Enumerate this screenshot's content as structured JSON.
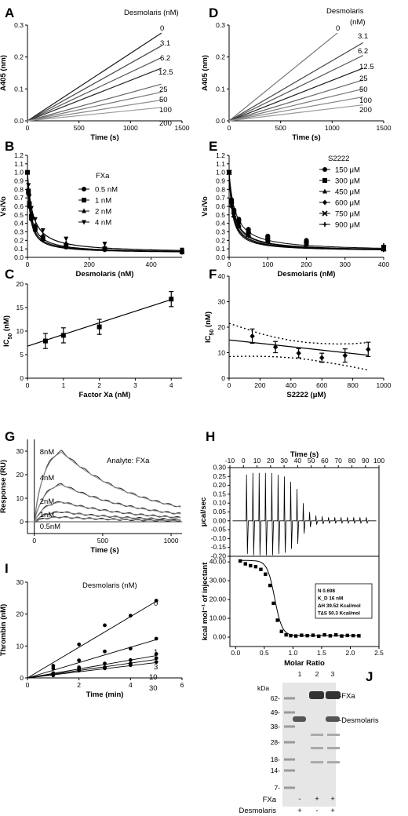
{
  "chart_data": [
    {
      "panel": "A",
      "type": "line",
      "xlabel": "Time (s)",
      "ylabel": "A405 (nm)",
      "xlim": [
        0,
        1500
      ],
      "ylim": [
        0,
        0.3
      ],
      "xticks": [
        "0",
        "500",
        "1000",
        "1500"
      ],
      "yticks": [
        "0.0",
        "0.1",
        "0.2",
        "0.3"
      ],
      "legend_title": "Desmolaris (nM)",
      "series": [
        {
          "label": "0",
          "x": [
            0,
            1300
          ],
          "y": [
            0,
            0.275
          ],
          "color": "#1a1a1a"
        },
        {
          "label": "3.1",
          "x": [
            0,
            1300
          ],
          "y": [
            0,
            0.235
          ],
          "color": "#444444"
        },
        {
          "label": "6.2",
          "x": [
            0,
            1300
          ],
          "y": [
            0,
            0.198
          ],
          "color": "#555555"
        },
        {
          "label": "12.5",
          "x": [
            0,
            1300
          ],
          "y": [
            0,
            0.165
          ],
          "color": "#222222"
        },
        {
          "label": "25",
          "x": [
            0,
            1300
          ],
          "y": [
            0,
            0.115
          ],
          "color": "#666666"
        },
        {
          "label": "50",
          "x": [
            0,
            1300
          ],
          "y": [
            0,
            0.09
          ],
          "color": "#777777"
        },
        {
          "label": "100",
          "x": [
            0,
            1300
          ],
          "y": [
            0,
            0.065
          ],
          "color": "#888888"
        },
        {
          "label": "200",
          "x": [
            0,
            1300
          ],
          "y": [
            0,
            0.042
          ],
          "color": "#999999"
        }
      ]
    },
    {
      "panel": "D",
      "type": "line",
      "xlabel": "Time (s)",
      "ylabel": "A405 (nm)",
      "xlim": [
        0,
        1500
      ],
      "ylim": [
        0,
        0.3
      ],
      "xticks": [
        "0",
        "500",
        "1000",
        "1500"
      ],
      "yticks": [
        "0.0",
        "0.1",
        "0.2",
        "0.3"
      ],
      "legend_title_lines": [
        "Desmolaris",
        "(nM)"
      ],
      "series": [
        {
          "label": "0",
          "x": [
            0,
            1050
          ],
          "y": [
            0,
            0.275
          ],
          "color": "#777777"
        },
        {
          "label": "3.1",
          "x": [
            0,
            1300
          ],
          "y": [
            0,
            0.245
          ],
          "color": "#444444"
        },
        {
          "label": "6.2",
          "x": [
            0,
            1300
          ],
          "y": [
            0,
            0.205
          ],
          "color": "#555555"
        },
        {
          "label": "12.5",
          "x": [
            0,
            1300
          ],
          "y": [
            0,
            0.165
          ],
          "color": "#1a1a1a"
        },
        {
          "label": "25",
          "x": [
            0,
            1300
          ],
          "y": [
            0,
            0.128
          ],
          "color": "#666666"
        },
        {
          "label": "50",
          "x": [
            0,
            1300
          ],
          "y": [
            0,
            0.1
          ],
          "color": "#777777"
        },
        {
          "label": "100",
          "x": [
            0,
            1300
          ],
          "y": [
            0,
            0.075
          ],
          "color": "#888888"
        },
        {
          "label": "200",
          "x": [
            0,
            1300
          ],
          "y": [
            0,
            0.05
          ],
          "color": "#999999"
        }
      ]
    },
    {
      "panel": "B",
      "type": "scatter",
      "xlabel": "Desmolaris (nM)",
      "ylabel": "Vs/Vo",
      "xlim": [
        0,
        500
      ],
      "ylim": [
        0,
        1.2
      ],
      "xticks": [
        "0",
        "200",
        "400"
      ],
      "yticks": [
        "0.0",
        "0.1",
        "0.2",
        "0.3",
        "0.4",
        "0.5",
        "0.6",
        "0.7",
        "0.8",
        "0.9",
        "1.0",
        "1.1",
        "1.2"
      ],
      "legend_title": "FXa",
      "x": [
        0,
        3.1,
        6.2,
        12.5,
        25,
        50,
        125,
        250,
        500
      ],
      "series": [
        {
          "name": "0.5 nM",
          "marker": "circle",
          "y": [
            1.0,
            0.75,
            0.6,
            0.45,
            0.32,
            0.21,
            0.12,
            0.09,
            0.06
          ],
          "ic50": 7.9
        },
        {
          "name": "1 nM",
          "marker": "square",
          "y": [
            1.0,
            0.78,
            0.63,
            0.48,
            0.35,
            0.23,
            0.14,
            0.1,
            0.065
          ],
          "ic50": 9.1
        },
        {
          "name": "2 nM",
          "marker": "triangle-up",
          "y": [
            1.0,
            0.8,
            0.66,
            0.52,
            0.38,
            0.26,
            0.17,
            0.12,
            0.075
          ],
          "ic50": 10.9
        },
        {
          "name": "4 nM",
          "marker": "triangle-down",
          "y": [
            1.0,
            0.85,
            0.72,
            0.58,
            0.45,
            0.32,
            0.22,
            0.16,
            0.09
          ],
          "ic50": 16.8
        }
      ]
    },
    {
      "panel": "E",
      "type": "scatter",
      "xlabel": "Desmolaris (nM)",
      "ylabel": "Vs/Vo",
      "xlim": [
        0,
        400
      ],
      "ylim": [
        0,
        1.2
      ],
      "xticks": [
        "0",
        "100",
        "200",
        "300",
        "400"
      ],
      "yticks": [
        "0.0",
        "0.1",
        "0.2",
        "0.3",
        "0.4",
        "0.5",
        "0.6",
        "0.7",
        "0.8",
        "0.9",
        "1.0",
        "1.1",
        "1.2"
      ],
      "legend_title": "S2222",
      "x": [
        0,
        6.2,
        12.5,
        25,
        50,
        100,
        200,
        400
      ],
      "series": [
        {
          "name": "150 μM",
          "y": [
            1.0,
            0.68,
            0.56,
            0.45,
            0.33,
            0.25,
            0.2,
            0.12
          ],
          "ic50": 16.5
        },
        {
          "name": "300 μM",
          "y": [
            1.0,
            0.65,
            0.53,
            0.42,
            0.3,
            0.22,
            0.18,
            0.11
          ],
          "ic50": 12.2
        },
        {
          "name": "450 μM",
          "y": [
            1.0,
            0.62,
            0.5,
            0.39,
            0.28,
            0.2,
            0.16,
            0.1
          ],
          "ic50": 9.8
        },
        {
          "name": "600 μM",
          "y": [
            1.0,
            0.6,
            0.48,
            0.37,
            0.26,
            0.19,
            0.15,
            0.09
          ],
          "ic50": 8.0
        },
        {
          "name": "750 μM",
          "y": [
            1.0,
            0.62,
            0.5,
            0.38,
            0.27,
            0.2,
            0.16,
            0.1
          ],
          "ic50": 8.9
        },
        {
          "name": "900 μM",
          "y": [
            1.0,
            0.66,
            0.55,
            0.44,
            0.33,
            0.25,
            0.2,
            0.14
          ],
          "ic50": 11.3
        }
      ]
    },
    {
      "panel": "C",
      "type": "scatter",
      "xlabel": "Factor Xa (nM)",
      "ylabel_main": "IC",
      "ylabel_sub": "50",
      "ylabel_rest": " (nM)",
      "xlim": [
        0,
        4.3
      ],
      "ylim": [
        0,
        20
      ],
      "xticks": [
        "0",
        "1",
        "2",
        "3",
        "4"
      ],
      "yticks": [
        "0",
        "5",
        "10",
        "15",
        "20"
      ],
      "x": [
        0.5,
        1,
        2,
        4
      ],
      "y": [
        7.9,
        9.1,
        10.9,
        16.8
      ],
      "yerr": [
        1.6,
        1.6,
        1.6,
        1.6
      ],
      "fit": {
        "x": [
          0,
          4
        ],
        "y": [
          6.8,
          16.7
        ]
      }
    },
    {
      "panel": "F",
      "type": "scatter",
      "xlabel": "S2222 (μM)",
      "ylabel_main": "IC",
      "ylabel_sub": "50",
      "ylabel_rest": " (nM)",
      "xlim": [
        0,
        1000
      ],
      "ylim": [
        0,
        40
      ],
      "xticks": [
        "0",
        "200",
        "400",
        "600",
        "800",
        "1000"
      ],
      "yticks": [
        "0",
        "10",
        "20",
        "30",
        "40"
      ],
      "x": [
        150,
        300,
        450,
        600,
        750,
        900
      ],
      "y": [
        16.5,
        12.2,
        9.8,
        8.0,
        8.9,
        11.3
      ],
      "yerr": [
        2.8,
        2.2,
        1.8,
        1.8,
        2.6,
        2.8
      ],
      "fit": {
        "x": [
          0,
          900
        ],
        "y": [
          15.0,
          9.0
        ]
      },
      "ci_upper": {
        "x": [
          0,
          100,
          200,
          300,
          400,
          500,
          600,
          700,
          800,
          900
        ],
        "y": [
          21.5,
          19.5,
          17.5,
          16.0,
          14.8,
          14.0,
          13.6,
          13.4,
          13.5,
          14.0
        ]
      },
      "ci_lower": {
        "x": [
          0,
          100,
          200,
          300,
          400,
          500,
          600,
          700,
          800,
          900
        ],
        "y": [
          8.5,
          8.6,
          8.6,
          8.4,
          8.0,
          7.4,
          6.5,
          5.5,
          4.4,
          3.2
        ]
      }
    },
    {
      "panel": "G",
      "type": "line",
      "xlabel": "Time (s)",
      "ylabel": "Response (RU)",
      "xlim": [
        -50,
        1080
      ],
      "ylim": [
        -5,
        35
      ],
      "xticks": [
        "0",
        "500",
        "1000"
      ],
      "yticks": [
        "0",
        "10",
        "20",
        "30"
      ],
      "xtick_values": [
        0,
        500,
        1000
      ],
      "ytick_values": [
        0,
        10,
        20,
        30
      ],
      "annotation": "Analyte: FXa",
      "series": [
        {
          "label": "8nM",
          "rmax": 30
        },
        {
          "label": "4nM",
          "rmax": 16
        },
        {
          "label": "2nM",
          "rmax": 8.5
        },
        {
          "label": "1nM",
          "rmax": 4.2
        },
        {
          "label": "0.5nM",
          "rmax": 2
        }
      ]
    },
    {
      "panel": "H",
      "type": "line",
      "top_xlabel": "Time (s)",
      "top_ylabel": "μcal/sec",
      "top_xticks": [
        "-10",
        "0",
        "10",
        "20",
        "30",
        "40",
        "50",
        "60",
        "70",
        "80",
        "90",
        "100"
      ],
      "top_yticks": [
        "-0.20",
        "-0.15",
        "-0.10",
        "-0.05",
        "0.00",
        "0.05",
        "0.10",
        "0.15",
        "0.20",
        "0.25",
        "0.30"
      ],
      "top_xlim": [
        -10,
        100
      ],
      "top_ylim": [
        -0.2,
        0.3
      ],
      "xlabel": "Molar Ratio",
      "ylabel": "kcal mol⁻¹ of injectant",
      "bottom_xticks": [
        "0.0",
        "0.5",
        "1.0",
        "1.5",
        "2.0",
        "2.5"
      ],
      "bottom_yticks": [
        "0.00",
        "10.00",
        "20.00",
        "30.00",
        "40.00"
      ],
      "bottom_xlim": [
        -0.1,
        2.5
      ],
      "bottom_ylim": [
        -5,
        43
      ],
      "injection_peaks": [
        0.26,
        0.27,
        0.27,
        0.27,
        0.27,
        0.26,
        0.25,
        0.22,
        0.18,
        0.1,
        0.05,
        0.03,
        0.025,
        0.02,
        0.02,
        0.02,
        0.02,
        0.02,
        0.02,
        0.02
      ],
      "points_x": [
        0.08,
        0.17,
        0.26,
        0.35,
        0.44,
        0.52,
        0.6,
        0.66,
        0.73,
        0.8,
        0.88,
        0.96,
        1.05,
        1.15,
        1.25,
        1.35,
        1.45,
        1.55,
        1.65,
        1.75,
        1.85,
        1.95,
        2.05,
        2.15
      ],
      "points_y": [
        40.5,
        39,
        38,
        37.5,
        36,
        33.5,
        27.5,
        18,
        9,
        3,
        1.2,
        0.8,
        0.6,
        1.0,
        0.8,
        1.0,
        0.5,
        1.2,
        0.7,
        1.2,
        0.6,
        0.9,
        0.8,
        0.7
      ],
      "box_lines": [
        "N 0.698",
        "K_D 16 nM",
        "ΔH 39.52 Kcal/mol",
        "T∆S 50.3 Kcal/mol"
      ]
    },
    {
      "panel": "I",
      "type": "scatter",
      "xlabel": "Time (min)",
      "ylabel": "Thrombin (nM)",
      "xlim": [
        0,
        6
      ],
      "ylim": [
        0,
        30
      ],
      "xticks": [
        "0",
        "2",
        "4",
        "6"
      ],
      "yticks": [
        "0",
        "10",
        "20",
        "30"
      ],
      "legend_title": "Desmolaris (nM)",
      "x": [
        0,
        1,
        2,
        3,
        4,
        5
      ],
      "series": [
        {
          "label": "0",
          "y": [
            0,
            3.8,
            10.5,
            16.5,
            19.5,
            24.2
          ],
          "fit_end": 24.0
        },
        {
          "label": "1",
          "y": [
            0,
            3.0,
            5.5,
            8.3,
            9.2,
            12.3
          ],
          "fit_end": 12.0
        },
        {
          "label": "3",
          "y": [
            0,
            1.5,
            3.3,
            4.5,
            5.6,
            7.5
          ],
          "fit_end": 7.0
        },
        {
          "label": "10",
          "y": [
            0,
            1.2,
            2.8,
            3.3,
            4.5,
            6.2
          ],
          "fit_end": 5.8
        },
        {
          "label": "30",
          "y": [
            0,
            0.8,
            2.3,
            3.0,
            4.0,
            5.0
          ],
          "fit_end": 4.8
        }
      ]
    },
    {
      "panel": "J",
      "type": "table",
      "kda_label": "kDa",
      "ladder": [
        "62-",
        "49-",
        "38-",
        "28-",
        "18-",
        "14-",
        "7-"
      ],
      "lanes": [
        "1",
        "2",
        "3"
      ],
      "bands": [
        "-FXa",
        "-Desmolaris"
      ],
      "row_labels": [
        "FXa",
        "Desmolaris"
      ],
      "signs": [
        [
          "-",
          "+",
          "+"
        ],
        [
          "+",
          "-",
          "+"
        ]
      ]
    }
  ],
  "panel_labels": [
    "A",
    "B",
    "C",
    "D",
    "E",
    "F",
    "G",
    "H",
    "I",
    "J"
  ]
}
